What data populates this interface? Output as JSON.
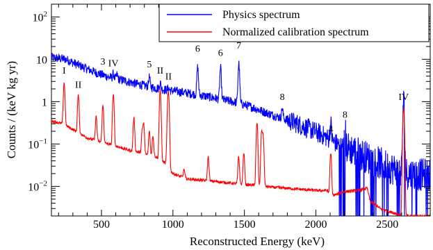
{
  "chart_data": {
    "type": "line",
    "xlabel": "Reconstructed Energy (keV)",
    "ylabel": "Counts / (keV kg yr)",
    "xlim": [
      150,
      2800
    ],
    "ylim": [
      0.002,
      200
    ],
    "yscale": "log",
    "x_ticks": [
      500,
      1000,
      1500,
      2000,
      2500
    ],
    "x_tick_labels": [
      "500",
      "1000",
      "1500",
      "2000",
      "2500"
    ],
    "y_ticks": [
      0.01,
      0.1,
      1,
      10,
      100
    ],
    "y_tick_labels": [
      {
        "base": "10",
        "exp": "−2"
      },
      {
        "base": "10",
        "exp": "−1"
      },
      {
        "base": "1",
        "exp": ""
      },
      {
        "base": "10",
        "exp": ""
      },
      {
        "base": "10",
        "exp": "2"
      }
    ],
    "legend_position": "top-right",
    "series": [
      {
        "name": "Physics spectrum",
        "color": "#0000ff",
        "background": [
          [
            150,
            11
          ],
          [
            250,
            10
          ],
          [
            350,
            7
          ],
          [
            450,
            5
          ],
          [
            550,
            3.8
          ],
          [
            650,
            3.2
          ],
          [
            750,
            2.6
          ],
          [
            850,
            2.2
          ],
          [
            950,
            1.9
          ],
          [
            1050,
            1.7
          ],
          [
            1150,
            1.5
          ],
          [
            1250,
            1.3
          ],
          [
            1350,
            1.1
          ],
          [
            1450,
            0.95
          ],
          [
            1550,
            0.75
          ],
          [
            1650,
            0.55
          ],
          [
            1750,
            0.42
          ],
          [
            1850,
            0.32
          ],
          [
            1950,
            0.23
          ],
          [
            2050,
            0.16
          ],
          [
            2150,
            0.1
          ],
          [
            2250,
            0.075
          ],
          [
            2350,
            0.05
          ],
          [
            2450,
            0.035
          ],
          [
            2550,
            0.025
          ],
          [
            2650,
            0.02
          ],
          [
            2800,
            0.018
          ]
        ],
        "peaks": [
          [
            583,
            4.5
          ],
          [
            609,
            4.3
          ],
          [
            835,
            3.8
          ],
          [
            911,
            2.8
          ],
          [
            969,
            2.1
          ],
          [
            1173,
            6.5
          ],
          [
            1333,
            6.2
          ],
          [
            1461,
            8
          ],
          [
            1765,
            0.7
          ],
          [
            2104,
            0.3
          ],
          [
            2204,
            0.2
          ],
          [
            2614,
            0.9
          ]
        ]
      },
      {
        "name": "Normalized calibration spectrum",
        "color": "#ff0000",
        "background": [
          [
            150,
            0.35
          ],
          [
            230,
            0.3
          ],
          [
            300,
            0.22
          ],
          [
            400,
            0.14
          ],
          [
            500,
            0.11
          ],
          [
            600,
            0.09
          ],
          [
            700,
            0.07
          ],
          [
            800,
            0.06
          ],
          [
            880,
            0.05
          ],
          [
            950,
            0.035
          ],
          [
            1000,
            0.02
          ],
          [
            1100,
            0.015
          ],
          [
            1200,
            0.014
          ],
          [
            1300,
            0.013
          ],
          [
            1400,
            0.012
          ],
          [
            1500,
            0.011
          ],
          [
            1600,
            0.0105
          ],
          [
            1700,
            0.0095
          ],
          [
            1800,
            0.009
          ],
          [
            1900,
            0.0085
          ],
          [
            2000,
            0.008
          ],
          [
            2080,
            0.008
          ],
          [
            2100,
            0.006
          ],
          [
            2150,
            0.0065
          ],
          [
            2200,
            0.0075
          ],
          [
            2300,
            0.008
          ],
          [
            2360,
            0.009
          ],
          [
            2380,
            0.0045
          ],
          [
            2450,
            0.003
          ],
          [
            2520,
            0.0025
          ],
          [
            2580,
            0.0022
          ],
          [
            2600,
            0.002
          ]
        ],
        "peaks": [
          [
            239,
            2.8
          ],
          [
            338,
            1.4
          ],
          [
            463,
            0.45
          ],
          [
            510,
            0.8
          ],
          [
            583,
            1.4
          ],
          [
            727,
            0.4
          ],
          [
            785,
            0.2
          ],
          [
            795,
            0.3
          ],
          [
            835,
            0.2
          ],
          [
            860,
            0.16
          ],
          [
            911,
            1.9
          ],
          [
            964,
            0.5
          ],
          [
            969,
            1.4
          ],
          [
            1078,
            0.025
          ],
          [
            1247,
            0.05
          ],
          [
            1460,
            0.05
          ],
          [
            1496,
            0.06
          ],
          [
            1588,
            0.3
          ],
          [
            1621,
            0.2
          ],
          [
            1631,
            0.15
          ],
          [
            2104,
            0.06
          ],
          [
            2614,
            0.7
          ]
        ]
      }
    ],
    "annotations": [
      {
        "text": "I",
        "x": 239,
        "y": 4.6
      },
      {
        "text": "II",
        "x": 338,
        "y": 2.1
      },
      {
        "text": "3",
        "x": 510,
        "y": 7.5
      },
      {
        "text": "IV",
        "x": 583,
        "y": 6.8
      },
      {
        "text": "5",
        "x": 835,
        "y": 6.4
      },
      {
        "text": "II",
        "x": 911,
        "y": 4.6
      },
      {
        "text": "II",
        "x": 969,
        "y": 3.3
      },
      {
        "text": "6",
        "x": 1173,
        "y": 15
      },
      {
        "text": "6",
        "x": 1333,
        "y": 12
      },
      {
        "text": "7",
        "x": 1461,
        "y": 18
      },
      {
        "text": "8",
        "x": 1765,
        "y": 1.1
      },
      {
        "text": "4",
        "x": 2104,
        "y": 0.19
      },
      {
        "text": "8",
        "x": 2204,
        "y": 0.42
      },
      {
        "text": "IV",
        "x": 2614,
        "y": 1.1
      }
    ]
  }
}
